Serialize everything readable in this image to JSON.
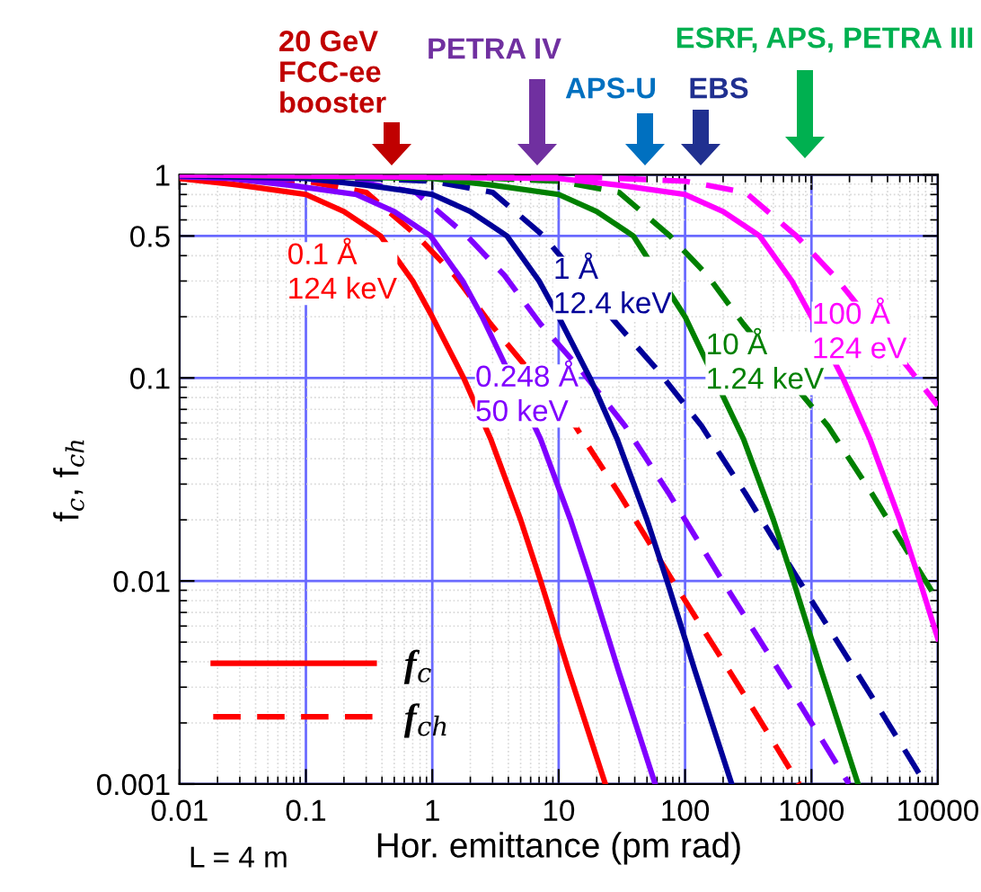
{
  "chart_data": {
    "type": "line",
    "log": "xy",
    "xlabel": "Hor. emittance (pm rad)",
    "ylabel": "f$_{c}$, f$_{ch}$",
    "xlim": [
      0.01,
      10000
    ],
    "ylim": [
      0.001,
      1
    ],
    "xticks": [
      0.01,
      0.1,
      1,
      10,
      100,
      1000,
      10000
    ],
    "yticks": [
      0.001,
      0.01,
      0.1,
      0.5,
      1
    ],
    "grid": true,
    "legend": "bottom left",
    "series": [
      {
        "name": "f$_{c}$",
        "color": "#ff0000",
        "line_style": "solid",
        "x": [
          0.01,
          0.03,
          0.1,
          0.2,
          0.39,
          0.7,
          1,
          1.77,
          2.9,
          5,
          7.2,
          12,
          23.4
        ],
        "values": [
          0.96,
          0.89,
          0.8,
          0.66,
          0.5,
          0.3,
          0.2,
          0.1,
          0.05,
          0.02,
          0.01,
          0.0036,
          0.001
        ]
      },
      {
        "name": "f$_{ch}$",
        "color": "#ff0000",
        "line_style": "dashed",
        "x": [
          0.01,
          0.1,
          0.3,
          0.76,
          1.5,
          2.9,
          13.5,
          30,
          80,
          300,
          800
        ],
        "values": [
          0.99,
          0.93,
          0.82,
          0.5,
          0.32,
          0.184,
          0.058,
          0.027,
          0.01,
          0.0027,
          0.001
        ]
      },
      {
        "color": "#8000ff",
        "line_style": "solid",
        "x": [
          0.01,
          0.025,
          0.074,
          0.25,
          0.5,
          0.97,
          1.74,
          2.48,
          7.19,
          12.4,
          17.9,
          29.8,
          58
        ],
        "values": [
          0.98,
          0.96,
          0.89,
          0.8,
          0.66,
          0.5,
          0.3,
          0.2,
          0.05,
          0.02,
          0.01,
          0.0036,
          0.001
        ]
      },
      {
        "color": "#8000ff",
        "line_style": "dashed",
        "x": [
          0.01,
          0.25,
          0.74,
          1.88,
          3.72,
          7.19,
          14.9,
          33.5,
          74.4,
          198,
          744,
          1984
        ],
        "values": [
          0.995,
          0.93,
          0.82,
          0.5,
          0.32,
          0.184,
          0.11,
          0.058,
          0.027,
          0.01,
          0.0027,
          0.001
        ]
      },
      {
        "color": "#000099",
        "line_style": "solid",
        "x": [
          0.01,
          0.1,
          0.3,
          1,
          2,
          3.9,
          7,
          10,
          17.7,
          29,
          50,
          72,
          120,
          234
        ],
        "values": [
          0.99,
          0.96,
          0.89,
          0.8,
          0.66,
          0.5,
          0.3,
          0.2,
          0.1,
          0.05,
          0.02,
          0.01,
          0.0036,
          0.001
        ]
      },
      {
        "color": "#000099",
        "line_style": "dashed",
        "x": [
          0.01,
          0.1,
          1,
          3,
          7.6,
          29,
          60,
          135,
          300,
          800,
          3000,
          8000
        ],
        "values": [
          1,
          0.99,
          0.93,
          0.82,
          0.5,
          0.184,
          0.11,
          0.058,
          0.027,
          0.01,
          0.0027,
          0.001
        ]
      },
      {
        "color": "#008000",
        "line_style": "solid",
        "x": [
          0.01,
          1,
          3,
          10,
          20,
          39,
          100,
          290,
          500,
          720,
          1200,
          2340
        ],
        "values": [
          1,
          0.96,
          0.89,
          0.8,
          0.66,
          0.5,
          0.2,
          0.05,
          0.02,
          0.01,
          0.0036,
          0.001
        ]
      },
      {
        "color": "#008000",
        "line_style": "dashed",
        "x": [
          0.01,
          1,
          10,
          30,
          76,
          150,
          290,
          1350,
          3000,
          8000,
          10000
        ],
        "values": [
          1,
          0.99,
          0.93,
          0.82,
          0.5,
          0.32,
          0.184,
          0.058,
          0.027,
          0.01,
          0.008
        ]
      },
      {
        "color": "#ff00ff",
        "line_style": "solid",
        "x": [
          0.01,
          10,
          30,
          100,
          200,
          390,
          700,
          1000,
          1770,
          2900,
          5000,
          7200,
          10000
        ],
        "values": [
          1,
          0.96,
          0.89,
          0.8,
          0.66,
          0.5,
          0.3,
          0.2,
          0.1,
          0.05,
          0.02,
          0.01,
          0.0052
        ]
      },
      {
        "color": "#ff00ff",
        "line_style": "dashed",
        "x": [
          0.01,
          10,
          100,
          300,
          760,
          1500,
          6000,
          10000
        ],
        "values": [
          1,
          0.99,
          0.93,
          0.82,
          0.5,
          0.32,
          0.11,
          0.073
        ]
      }
    ],
    "annotations": [
      "0.1 Å\n124 keV",
      "0.248 Å\n50 keV",
      "1 Å\n12.4 keV",
      "10 Å\n1.24 keV",
      "100 Å\n124 eV",
      "20 GeV\nFCC-ee\nbooster",
      "PETRA IV",
      "APS-U",
      "EBS",
      "ESRF, APS, PETRA III",
      "L = 4 m"
    ]
  }
}
